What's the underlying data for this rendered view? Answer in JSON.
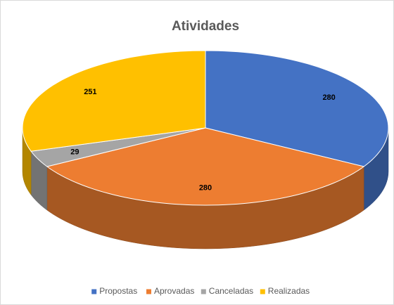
{
  "chart_data": {
    "type": "pie",
    "title": "Atividades",
    "categories": [
      "Propostas",
      "Aprovadas",
      "Canceladas",
      "Realizadas"
    ],
    "values": [
      280,
      280,
      29,
      251
    ],
    "colors": [
      "#4472c4",
      "#ed7d31",
      "#a5a5a5",
      "#ffc000"
    ],
    "legend": "bottom"
  }
}
